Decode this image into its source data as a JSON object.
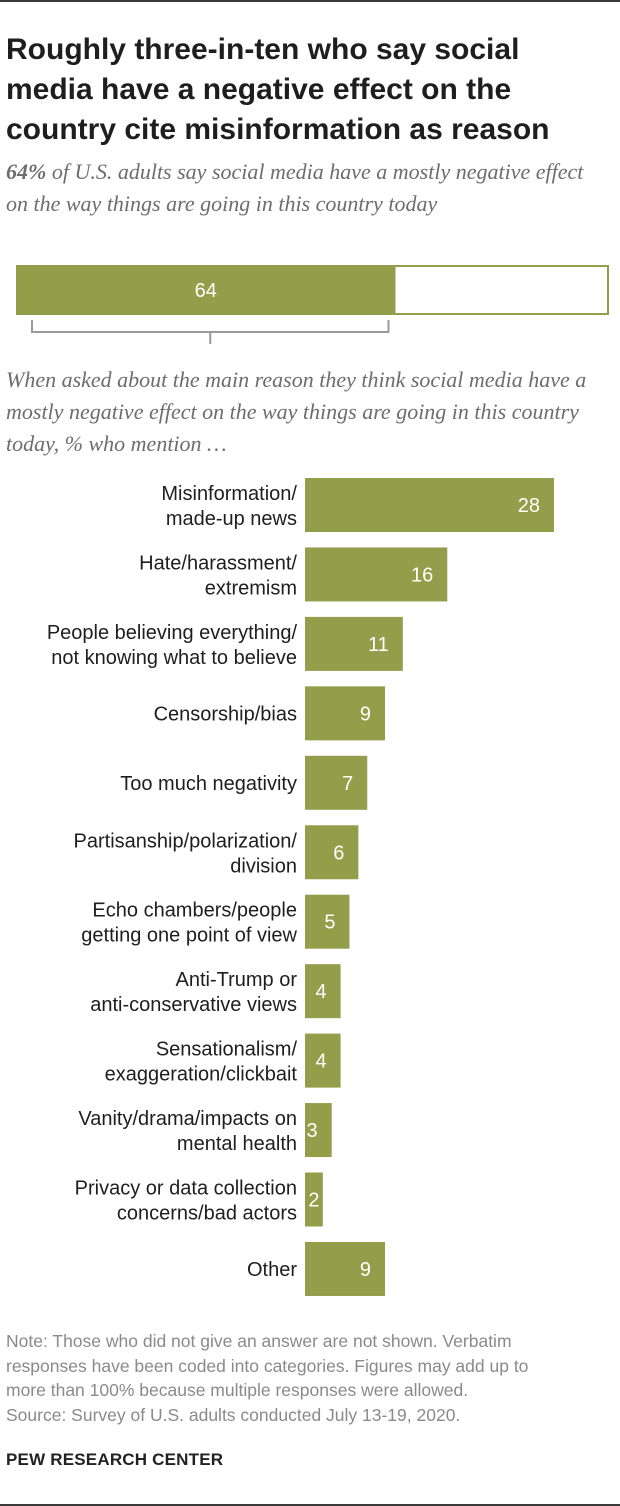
{
  "title": "Roughly three-in-ten who say social media have a negative effect on the country cite misinformation as reason",
  "subtitle": {
    "emphasis": "64%",
    "text": "of U.S. adults say social media have a mostly negative effect on the way things are going in this country today"
  },
  "question": "When asked about the main reason they think social media have a mostly negative effect on the way things are going in this country today, % who mention …",
  "colors": {
    "bar": "#939e4b",
    "text": "#1e1e1e",
    "bar_label": "#ffffff",
    "bracket": "#999999",
    "note": "#8a8a8a"
  },
  "chart_data": [
    {
      "type": "bar",
      "orientation": "horizontal",
      "stacked_total": 100,
      "values": [
        64
      ],
      "data_labels": [
        "64"
      ]
    },
    {
      "type": "bar",
      "orientation": "horizontal",
      "categories": [
        [
          "Misinformation/",
          "made-up news"
        ],
        [
          "Hate/harassment/",
          "extremism"
        ],
        [
          "People believing everything/",
          "not knowing what to believe"
        ],
        [
          "Censorship/bias"
        ],
        [
          "Too much negativity"
        ],
        [
          "Partisanship/polarization/",
          "division"
        ],
        [
          "Echo chambers/people",
          "getting one point of view"
        ],
        [
          "Anti-Trump or",
          "anti-conservative views"
        ],
        [
          "Sensationalism/",
          "exaggeration/clickbait"
        ],
        [
          "Vanity/drama/impacts on",
          "mental health"
        ],
        [
          "Privacy or data collection",
          "concerns/bad actors"
        ],
        [
          "Other"
        ]
      ],
      "values": [
        28,
        16,
        11,
        9,
        7,
        6,
        5,
        4,
        4,
        3,
        2,
        9
      ],
      "data_labels": [
        "28",
        "16",
        "11",
        "9",
        "7",
        "6",
        "5",
        "4",
        "4",
        "3",
        "2",
        "9"
      ]
    }
  ],
  "note_lines": [
    "Note: Those who did not give an answer are not shown. Verbatim",
    "responses have been coded into categories. Figures may add up to",
    "more than 100% because multiple responses were allowed.",
    "Source: Survey of U.S. adults conducted July 13-19, 2020."
  ],
  "brand": "PEW RESEARCH CENTER"
}
